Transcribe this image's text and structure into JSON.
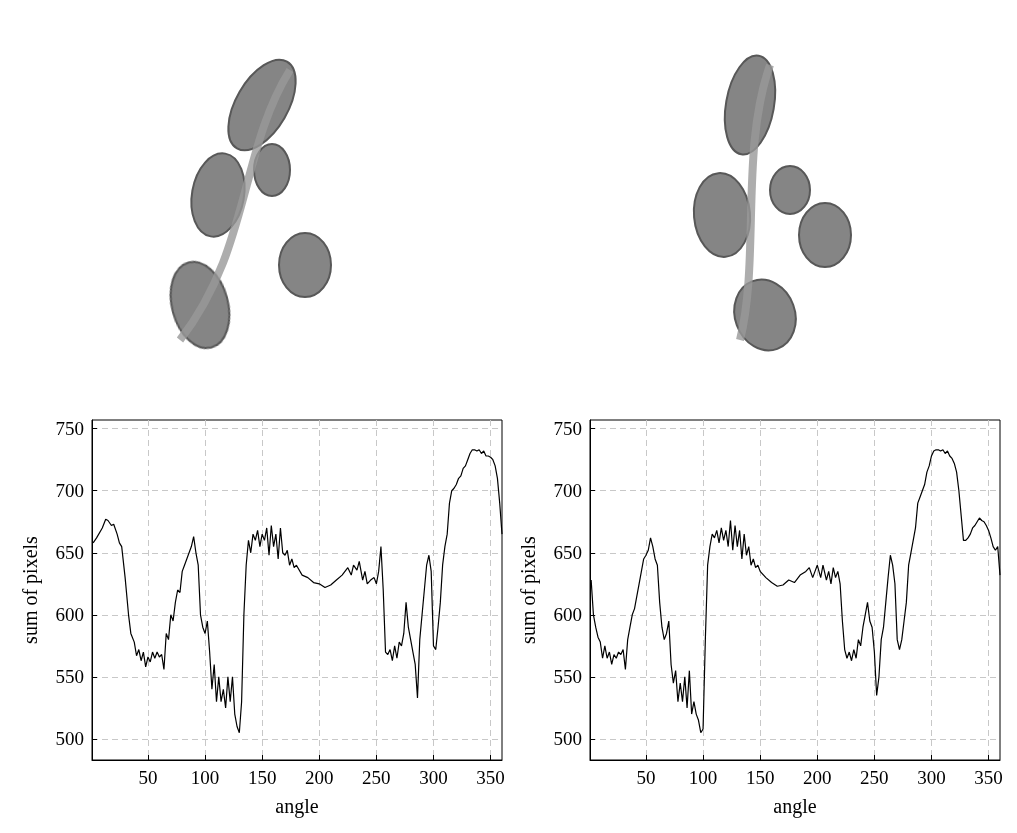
{
  "chart_data": [
    {
      "type": "line",
      "xlabel": "angle",
      "ylabel": "sum of pixels",
      "color": "#000000",
      "grid": true,
      "xlim": [
        1,
        360
      ],
      "ylim": [
        483,
        757
      ],
      "xticks": [
        50,
        100,
        150,
        200,
        250,
        300,
        350
      ],
      "yticks": [
        500,
        550,
        600,
        650,
        700,
        750
      ],
      "x": [
        2,
        5,
        10,
        13,
        15,
        18,
        20,
        23,
        25,
        27,
        30,
        33,
        35,
        38,
        40,
        42,
        44,
        46,
        48,
        50,
        52,
        54,
        56,
        58,
        60,
        62,
        64,
        66,
        68,
        70,
        72,
        74,
        76,
        78,
        80,
        82,
        84,
        86,
        88,
        90,
        92,
        94,
        96,
        98,
        100,
        102,
        104,
        106,
        108,
        110,
        112,
        114,
        116,
        118,
        120,
        122,
        124,
        126,
        128,
        130,
        132,
        134,
        136,
        138,
        140,
        142,
        144,
        146,
        148,
        150,
        152,
        154,
        156,
        158,
        160,
        162,
        164,
        166,
        168,
        170,
        172,
        174,
        176,
        178,
        180,
        185,
        190,
        195,
        200,
        205,
        210,
        215,
        220,
        225,
        228,
        230,
        233,
        235,
        238,
        240,
        242,
        245,
        248,
        250,
        252,
        254,
        256,
        258,
        260,
        262,
        264,
        266,
        268,
        270,
        272,
        274,
        276,
        278,
        280,
        282,
        284,
        286,
        288,
        290,
        292,
        294,
        296,
        298,
        300,
        302,
        304,
        306,
        308,
        310,
        312,
        314,
        316,
        318,
        320,
        322,
        324,
        326,
        328,
        330,
        332,
        334,
        336,
        338,
        340,
        342,
        344,
        346,
        348,
        350,
        352,
        354,
        356,
        358,
        360
      ],
      "values": [
        658,
        662,
        670,
        677,
        676,
        672,
        673,
        665,
        658,
        655,
        630,
        600,
        585,
        578,
        567,
        572,
        563,
        570,
        558,
        566,
        562,
        570,
        565,
        570,
        566,
        568,
        556,
        585,
        580,
        600,
        595,
        610,
        620,
        618,
        635,
        640,
        645,
        650,
        655,
        663,
        650,
        640,
        600,
        590,
        585,
        595,
        570,
        540,
        560,
        530,
        550,
        530,
        540,
        525,
        550,
        530,
        550,
        520,
        510,
        505,
        530,
        600,
        640,
        660,
        650,
        665,
        660,
        668,
        655,
        665,
        660,
        670,
        648,
        672,
        655,
        665,
        645,
        670,
        650,
        648,
        652,
        640,
        645,
        638,
        640,
        632,
        630,
        626,
        625,
        622,
        624,
        628,
        632,
        638,
        632,
        640,
        636,
        643,
        628,
        635,
        625,
        628,
        630,
        625,
        635,
        655,
        620,
        570,
        568,
        572,
        563,
        575,
        565,
        578,
        575,
        585,
        610,
        590,
        580,
        570,
        560,
        533,
        580,
        600,
        620,
        640,
        648,
        635,
        575,
        572,
        590,
        610,
        640,
        655,
        665,
        690,
        700,
        702,
        705,
        710,
        712,
        718,
        720,
        725,
        730,
        733,
        733,
        732,
        733,
        730,
        732,
        728,
        728,
        727,
        725,
        720,
        710,
        690,
        665
      ]
    },
    {
      "type": "line",
      "xlabel": "angle",
      "ylabel": "sum of pixels",
      "color": "#000000",
      "grid": true,
      "xlim": [
        1,
        360
      ],
      "ylim": [
        483,
        757
      ],
      "xticks": [
        50,
        100,
        150,
        200,
        250,
        300,
        350
      ],
      "yticks": [
        500,
        550,
        600,
        650,
        700,
        750
      ],
      "x": [
        2,
        4,
        6,
        8,
        10,
        12,
        14,
        16,
        18,
        20,
        22,
        24,
        26,
        28,
        30,
        32,
        34,
        36,
        38,
        40,
        42,
        44,
        46,
        48,
        50,
        52,
        54,
        56,
        58,
        60,
        62,
        64,
        66,
        68,
        70,
        72,
        74,
        76,
        78,
        80,
        82,
        84,
        86,
        88,
        90,
        92,
        94,
        96,
        98,
        100,
        102,
        104,
        106,
        108,
        110,
        112,
        114,
        116,
        118,
        120,
        122,
        124,
        126,
        128,
        130,
        132,
        134,
        136,
        138,
        140,
        142,
        144,
        146,
        148,
        150,
        155,
        160,
        165,
        170,
        175,
        180,
        185,
        190,
        193,
        196,
        198,
        200,
        203,
        205,
        208,
        210,
        212,
        214,
        216,
        218,
        220,
        222,
        224,
        226,
        228,
        230,
        232,
        234,
        236,
        238,
        240,
        242,
        244,
        246,
        248,
        250,
        252,
        254,
        256,
        258,
        260,
        262,
        264,
        266,
        268,
        270,
        272,
        274,
        276,
        278,
        280,
        282,
        284,
        286,
        288,
        290,
        292,
        294,
        296,
        298,
        300,
        302,
        304,
        306,
        308,
        310,
        312,
        314,
        316,
        318,
        320,
        322,
        324,
        326,
        328,
        330,
        332,
        334,
        336,
        338,
        340,
        342,
        344,
        346,
        348,
        350,
        352,
        354,
        356,
        358,
        360
      ],
      "values": [
        628,
        600,
        590,
        582,
        578,
        565,
        575,
        565,
        570,
        560,
        568,
        565,
        570,
        568,
        572,
        556,
        580,
        590,
        600,
        605,
        615,
        625,
        635,
        645,
        648,
        652,
        662,
        655,
        645,
        640,
        610,
        590,
        580,
        585,
        595,
        560,
        545,
        555,
        530,
        545,
        530,
        550,
        525,
        555,
        520,
        530,
        520,
        515,
        505,
        508,
        580,
        640,
        655,
        665,
        662,
        668,
        658,
        670,
        660,
        668,
        655,
        676,
        652,
        672,
        655,
        668,
        645,
        665,
        648,
        655,
        640,
        645,
        638,
        640,
        635,
        630,
        626,
        623,
        624,
        628,
        626,
        632,
        635,
        638,
        630,
        635,
        640,
        630,
        640,
        628,
        635,
        625,
        638,
        630,
        635,
        625,
        595,
        572,
        565,
        570,
        563,
        572,
        565,
        580,
        575,
        590,
        600,
        610,
        595,
        590,
        570,
        535,
        550,
        580,
        590,
        610,
        630,
        648,
        640,
        625,
        580,
        572,
        580,
        595,
        610,
        640,
        650,
        660,
        670,
        690,
        695,
        700,
        705,
        715,
        720,
        728,
        732,
        733,
        733,
        732,
        733,
        730,
        732,
        728,
        726,
        722,
        715,
        700,
        680,
        660,
        660,
        662,
        665,
        670,
        672,
        675,
        678,
        676,
        675,
        672,
        668,
        662,
        655,
        652,
        655,
        632
      ]
    }
  ]
}
